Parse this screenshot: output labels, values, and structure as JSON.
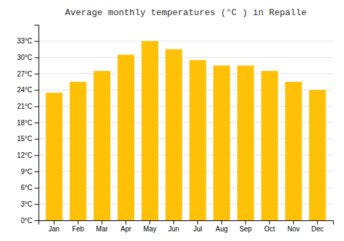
{
  "chart_data": {
    "type": "bar",
    "title": "Average monthly temperatures (°C ) in Repalle",
    "categories": [
      "Jan",
      "Feb",
      "Mar",
      "Apr",
      "May",
      "Jun",
      "Jul",
      "Aug",
      "Sep",
      "Oct",
      "Nov",
      "Dec"
    ],
    "values": [
      23.5,
      25.5,
      27.5,
      30.5,
      33.0,
      31.5,
      29.5,
      28.5,
      28.5,
      27.5,
      25.5,
      24.0
    ],
    "color": "#FFC107",
    "ylim": [
      0,
      36
    ],
    "yticks": [
      {
        "value": 0,
        "label": "0°C"
      },
      {
        "value": 3,
        "label": "3°C"
      },
      {
        "value": 6,
        "label": "6°C"
      },
      {
        "value": 9,
        "label": "9°C"
      },
      {
        "value": 12,
        "label": "12°C"
      },
      {
        "value": 15,
        "label": "15°C"
      },
      {
        "value": 18,
        "label": "18°C"
      },
      {
        "value": 21,
        "label": "21°C"
      },
      {
        "value": 24,
        "label": "24°C"
      },
      {
        "value": 27,
        "label": "27°C"
      },
      {
        "value": 30,
        "label": "30°C"
      },
      {
        "value": 33,
        "label": "33°C"
      }
    ],
    "grid": true
  }
}
